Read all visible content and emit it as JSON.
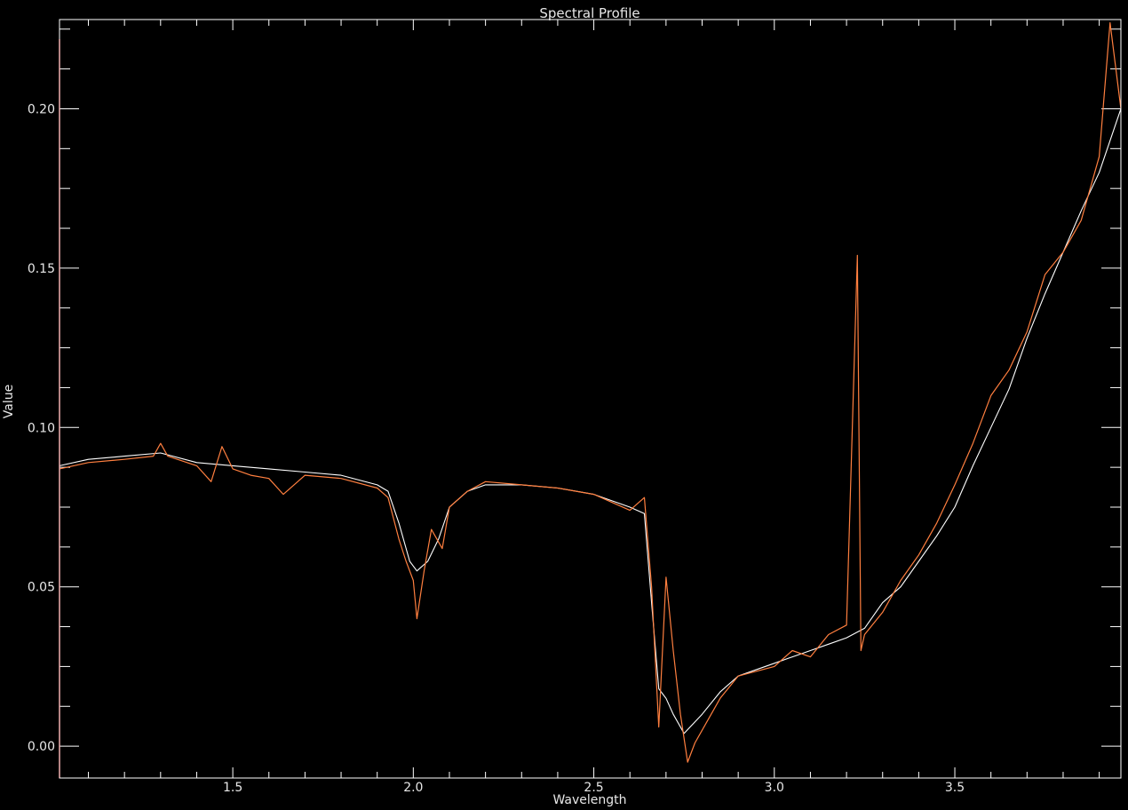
{
  "chart_data": {
    "type": "line",
    "title": "Spectral Profile",
    "xlabel": "Wavelength",
    "ylabel": "Value",
    "xlim": [
      1.02,
      3.96
    ],
    "ylim": [
      -0.01,
      0.228
    ],
    "x_ticks": [
      {
        "value": 1.5,
        "label": "1.5"
      },
      {
        "value": 2.0,
        "label": "2.0"
      },
      {
        "value": 2.5,
        "label": "2.5"
      },
      {
        "value": 3.0,
        "label": "3.0"
      },
      {
        "value": 3.5,
        "label": "3.5"
      }
    ],
    "y_ticks": [
      {
        "value": 0.0,
        "label": "0.00"
      },
      {
        "value": 0.05,
        "label": "0.05"
      },
      {
        "value": 0.1,
        "label": "0.10"
      },
      {
        "value": 0.15,
        "label": "0.15"
      },
      {
        "value": 0.2,
        "label": "0.20"
      }
    ],
    "grid": false,
    "background": "#000000",
    "series": [
      {
        "color": "#ffffff",
        "x": [
          1.02,
          1.1,
          1.2,
          1.3,
          1.4,
          1.5,
          1.6,
          1.7,
          1.8,
          1.9,
          1.93,
          1.96,
          1.99,
          2.01,
          2.04,
          2.07,
          2.1,
          2.15,
          2.2,
          2.3,
          2.4,
          2.5,
          2.6,
          2.64,
          2.66,
          2.68,
          2.7,
          2.72,
          2.75,
          2.8,
          2.85,
          2.9,
          3.0,
          3.05,
          3.1,
          3.15,
          3.2,
          3.25,
          3.3,
          3.35,
          3.4,
          3.45,
          3.5,
          3.55,
          3.6,
          3.65,
          3.7,
          3.75,
          3.8,
          3.85,
          3.9,
          3.96
        ],
        "y": [
          0.088,
          0.09,
          0.091,
          0.092,
          0.089,
          0.088,
          0.087,
          0.086,
          0.085,
          0.082,
          0.08,
          0.07,
          0.058,
          0.055,
          0.058,
          0.065,
          0.075,
          0.08,
          0.082,
          0.082,
          0.081,
          0.079,
          0.075,
          0.073,
          0.045,
          0.018,
          0.015,
          0.01,
          0.004,
          0.01,
          0.017,
          0.022,
          0.026,
          0.028,
          0.03,
          0.032,
          0.034,
          0.037,
          0.045,
          0.05,
          0.058,
          0.066,
          0.075,
          0.088,
          0.1,
          0.112,
          0.128,
          0.142,
          0.155,
          0.168,
          0.18,
          0.2
        ]
      },
      {
        "color": "#ff7f3f",
        "x": [
          1.02,
          1.1,
          1.2,
          1.28,
          1.3,
          1.32,
          1.4,
          1.44,
          1.47,
          1.5,
          1.55,
          1.6,
          1.64,
          1.7,
          1.8,
          1.9,
          1.93,
          1.96,
          1.98,
          2.0,
          2.01,
          2.03,
          2.05,
          2.08,
          2.1,
          2.15,
          2.2,
          2.3,
          2.4,
          2.5,
          2.6,
          2.64,
          2.66,
          2.68,
          2.7,
          2.72,
          2.74,
          2.76,
          2.78,
          2.8,
          2.85,
          2.9,
          3.0,
          3.05,
          3.1,
          3.15,
          3.2,
          3.23,
          3.24,
          3.25,
          3.3,
          3.35,
          3.4,
          3.45,
          3.5,
          3.55,
          3.6,
          3.65,
          3.7,
          3.75,
          3.8,
          3.85,
          3.9,
          3.93,
          3.96
        ],
        "y": [
          0.087,
          0.089,
          0.09,
          0.091,
          0.095,
          0.091,
          0.088,
          0.083,
          0.094,
          0.087,
          0.085,
          0.084,
          0.079,
          0.085,
          0.084,
          0.081,
          0.078,
          0.065,
          0.058,
          0.052,
          0.04,
          0.055,
          0.068,
          0.062,
          0.075,
          0.08,
          0.083,
          0.082,
          0.081,
          0.079,
          0.074,
          0.078,
          0.05,
          0.006,
          0.053,
          0.03,
          0.01,
          -0.005,
          0.001,
          0.005,
          0.015,
          0.022,
          0.025,
          0.03,
          0.028,
          0.035,
          0.038,
          0.154,
          0.03,
          0.035,
          0.042,
          0.052,
          0.06,
          0.07,
          0.082,
          0.095,
          0.11,
          0.118,
          0.13,
          0.148,
          0.155,
          0.165,
          0.185,
          0.227,
          0.2
        ]
      }
    ]
  }
}
